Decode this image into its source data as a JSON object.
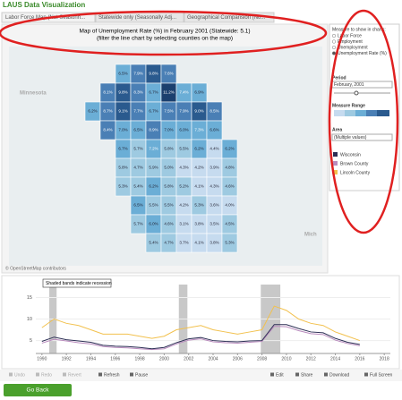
{
  "header": {
    "title": "LAUS Data Visualization",
    "tabs": [
      "Labor Force Map (Not Seasonn...",
      "Statewide only (Seasonally Adj...",
      "Geographical Comparision (No..."
    ]
  },
  "map": {
    "title": "Map of Unemployment Rate (%) in February 2001 (Statewide: 5.1)",
    "subtitle": "(filter the line chart by selecting counties on the map)",
    "neighbors": [
      "Minnesota",
      "Mich"
    ],
    "attribution": "© OpenStreetMap contributors",
    "counties": [
      "6.5%",
      "7.9%",
      "9.8%",
      "7.6%",
      "8.1%",
      "9.8%",
      "8.3%",
      "6.7%",
      "11.2%",
      "7.4%",
      "6.9%",
      "6.2%",
      "8.7%",
      "9.1%",
      "7.7%",
      "6.7%",
      "7.5%",
      "7.9%",
      "9.0%",
      "8.5%",
      "8.4%",
      "7.0%",
      "6.5%",
      "8.9%",
      "7.0%",
      "6.0%",
      "7.3%",
      "6.6%",
      "6.7%",
      "5.7%",
      "7.2%",
      "5.8%",
      "5.5%",
      "6.2%",
      "4.4%",
      "6.2%",
      "5.8%",
      "4.7%",
      "5.9%",
      "5.0%",
      "4.3%",
      "4.2%",
      "3.9%",
      "4.8%",
      "5.3%",
      "5.4%",
      "6.2%",
      "5.8%",
      "5.2%",
      "4.1%",
      "4.3%",
      "4.6%",
      "6.5%",
      "5.5%",
      "5.5%",
      "4.2%",
      "5.3%",
      "3.6%",
      "4.0%",
      "5.7%",
      "6.0%",
      "4.6%",
      "3.1%",
      "3.8%",
      "3.5%",
      "4.5%",
      "5.4%",
      "4.7%",
      "3.7%",
      "4.1%",
      "3.8%",
      "5.3%"
    ]
  },
  "panel": {
    "measure_title": "Measure to show in charts:",
    "measures": [
      "Labor Force",
      "Employment",
      "Unemployment",
      "Unemployment Rate (%)"
    ],
    "period_title": "Period",
    "period": "February, 2001",
    "range_title": "Measure Range",
    "area_title": "Area",
    "area": "(Multiple values)"
  },
  "line_chart": {
    "type": "line",
    "annotation": "Shaded bands indicate recession",
    "x": [
      1990,
      1991,
      1992,
      1993,
      1994,
      1995,
      1996,
      1997,
      1998,
      1999,
      2000,
      2001,
      2002,
      2003,
      2004,
      2005,
      2006,
      2007,
      2008,
      2009,
      2010,
      2011,
      2012,
      2013,
      2014,
      2015,
      2016
    ],
    "series": [
      {
        "name": "Wisconsin",
        "color": "#2d2f55",
        "values": [
          4.8,
          5.8,
          5.2,
          4.9,
          4.6,
          3.9,
          3.7,
          3.6,
          3.4,
          3.1,
          3.4,
          4.5,
          5.4,
          5.7,
          5.0,
          4.8,
          4.7,
          4.9,
          5.0,
          8.7,
          8.7,
          7.8,
          7.0,
          6.8,
          5.5,
          4.6,
          4.1
        ]
      },
      {
        "name": "Brown County",
        "color": "#b98bbd",
        "values": [
          4.4,
          5.3,
          4.9,
          4.5,
          4.2,
          3.6,
          3.4,
          3.3,
          3.1,
          2.9,
          3.1,
          4.2,
          5.1,
          5.4,
          4.7,
          4.5,
          4.4,
          4.6,
          4.8,
          8.3,
          8.2,
          7.3,
          6.6,
          6.4,
          5.1,
          4.3,
          3.8
        ]
      },
      {
        "name": "Lincoln County",
        "color": "#f2c14e",
        "values": [
          8,
          10,
          9,
          8.5,
          7.5,
          6.5,
          6.5,
          6.5,
          6,
          5.5,
          6,
          7.5,
          8,
          8.5,
          7.5,
          7,
          6.5,
          7,
          7.5,
          13,
          12,
          10,
          9,
          8.5,
          7,
          6,
          5
        ]
      }
    ],
    "recessions": [
      [
        1990.6,
        1991.2
      ],
      [
        2001.2,
        2001.9
      ],
      [
        2007.9,
        2009.5
      ]
    ],
    "xlim": [
      1989.5,
      2018.5
    ],
    "xticks": [
      1990,
      1992,
      1994,
      1996,
      1998,
      2000,
      2002,
      2004,
      2006,
      2008,
      2010,
      2012,
      2014,
      2016,
      2018
    ],
    "ylim": [
      2,
      18
    ],
    "yticks": [
      5,
      10,
      15
    ]
  },
  "toolbar": [
    "Undo",
    "Redo",
    "Revert",
    "Refresh",
    "Pause",
    "Edit",
    "Share",
    "Download",
    "Full Screen"
  ],
  "button": "Go Back"
}
